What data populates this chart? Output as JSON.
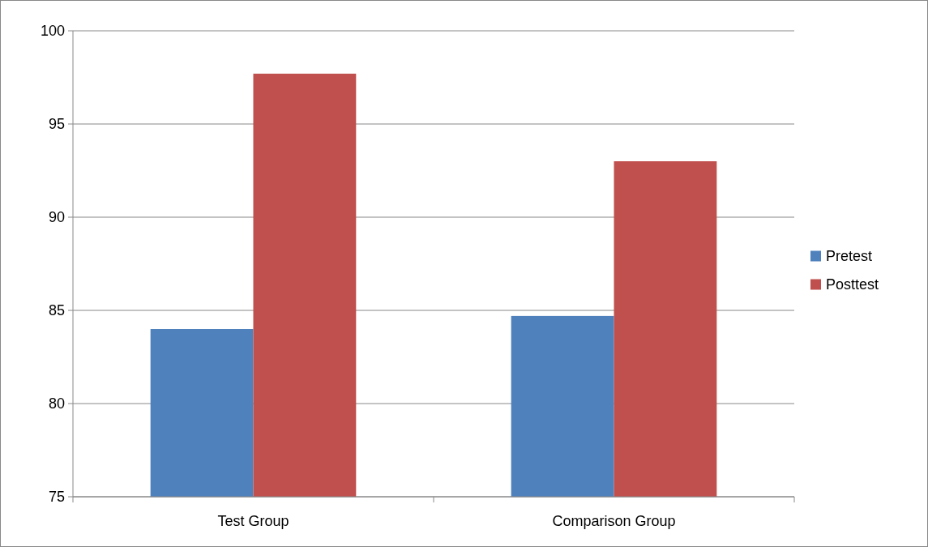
{
  "chart_data": {
    "type": "bar",
    "categories": [
      "Test Group",
      "Comparison Group"
    ],
    "series": [
      {
        "name": "Pretest",
        "color": "#4f81bd",
        "values": [
          84,
          84.7
        ]
      },
      {
        "name": "Posttest",
        "color": "#c0504d",
        "values": [
          97.7,
          93
        ]
      }
    ],
    "ylim": [
      75,
      100
    ],
    "yticks": [
      75,
      80,
      85,
      90,
      95,
      100
    ],
    "grid": "y",
    "legend": "right"
  }
}
